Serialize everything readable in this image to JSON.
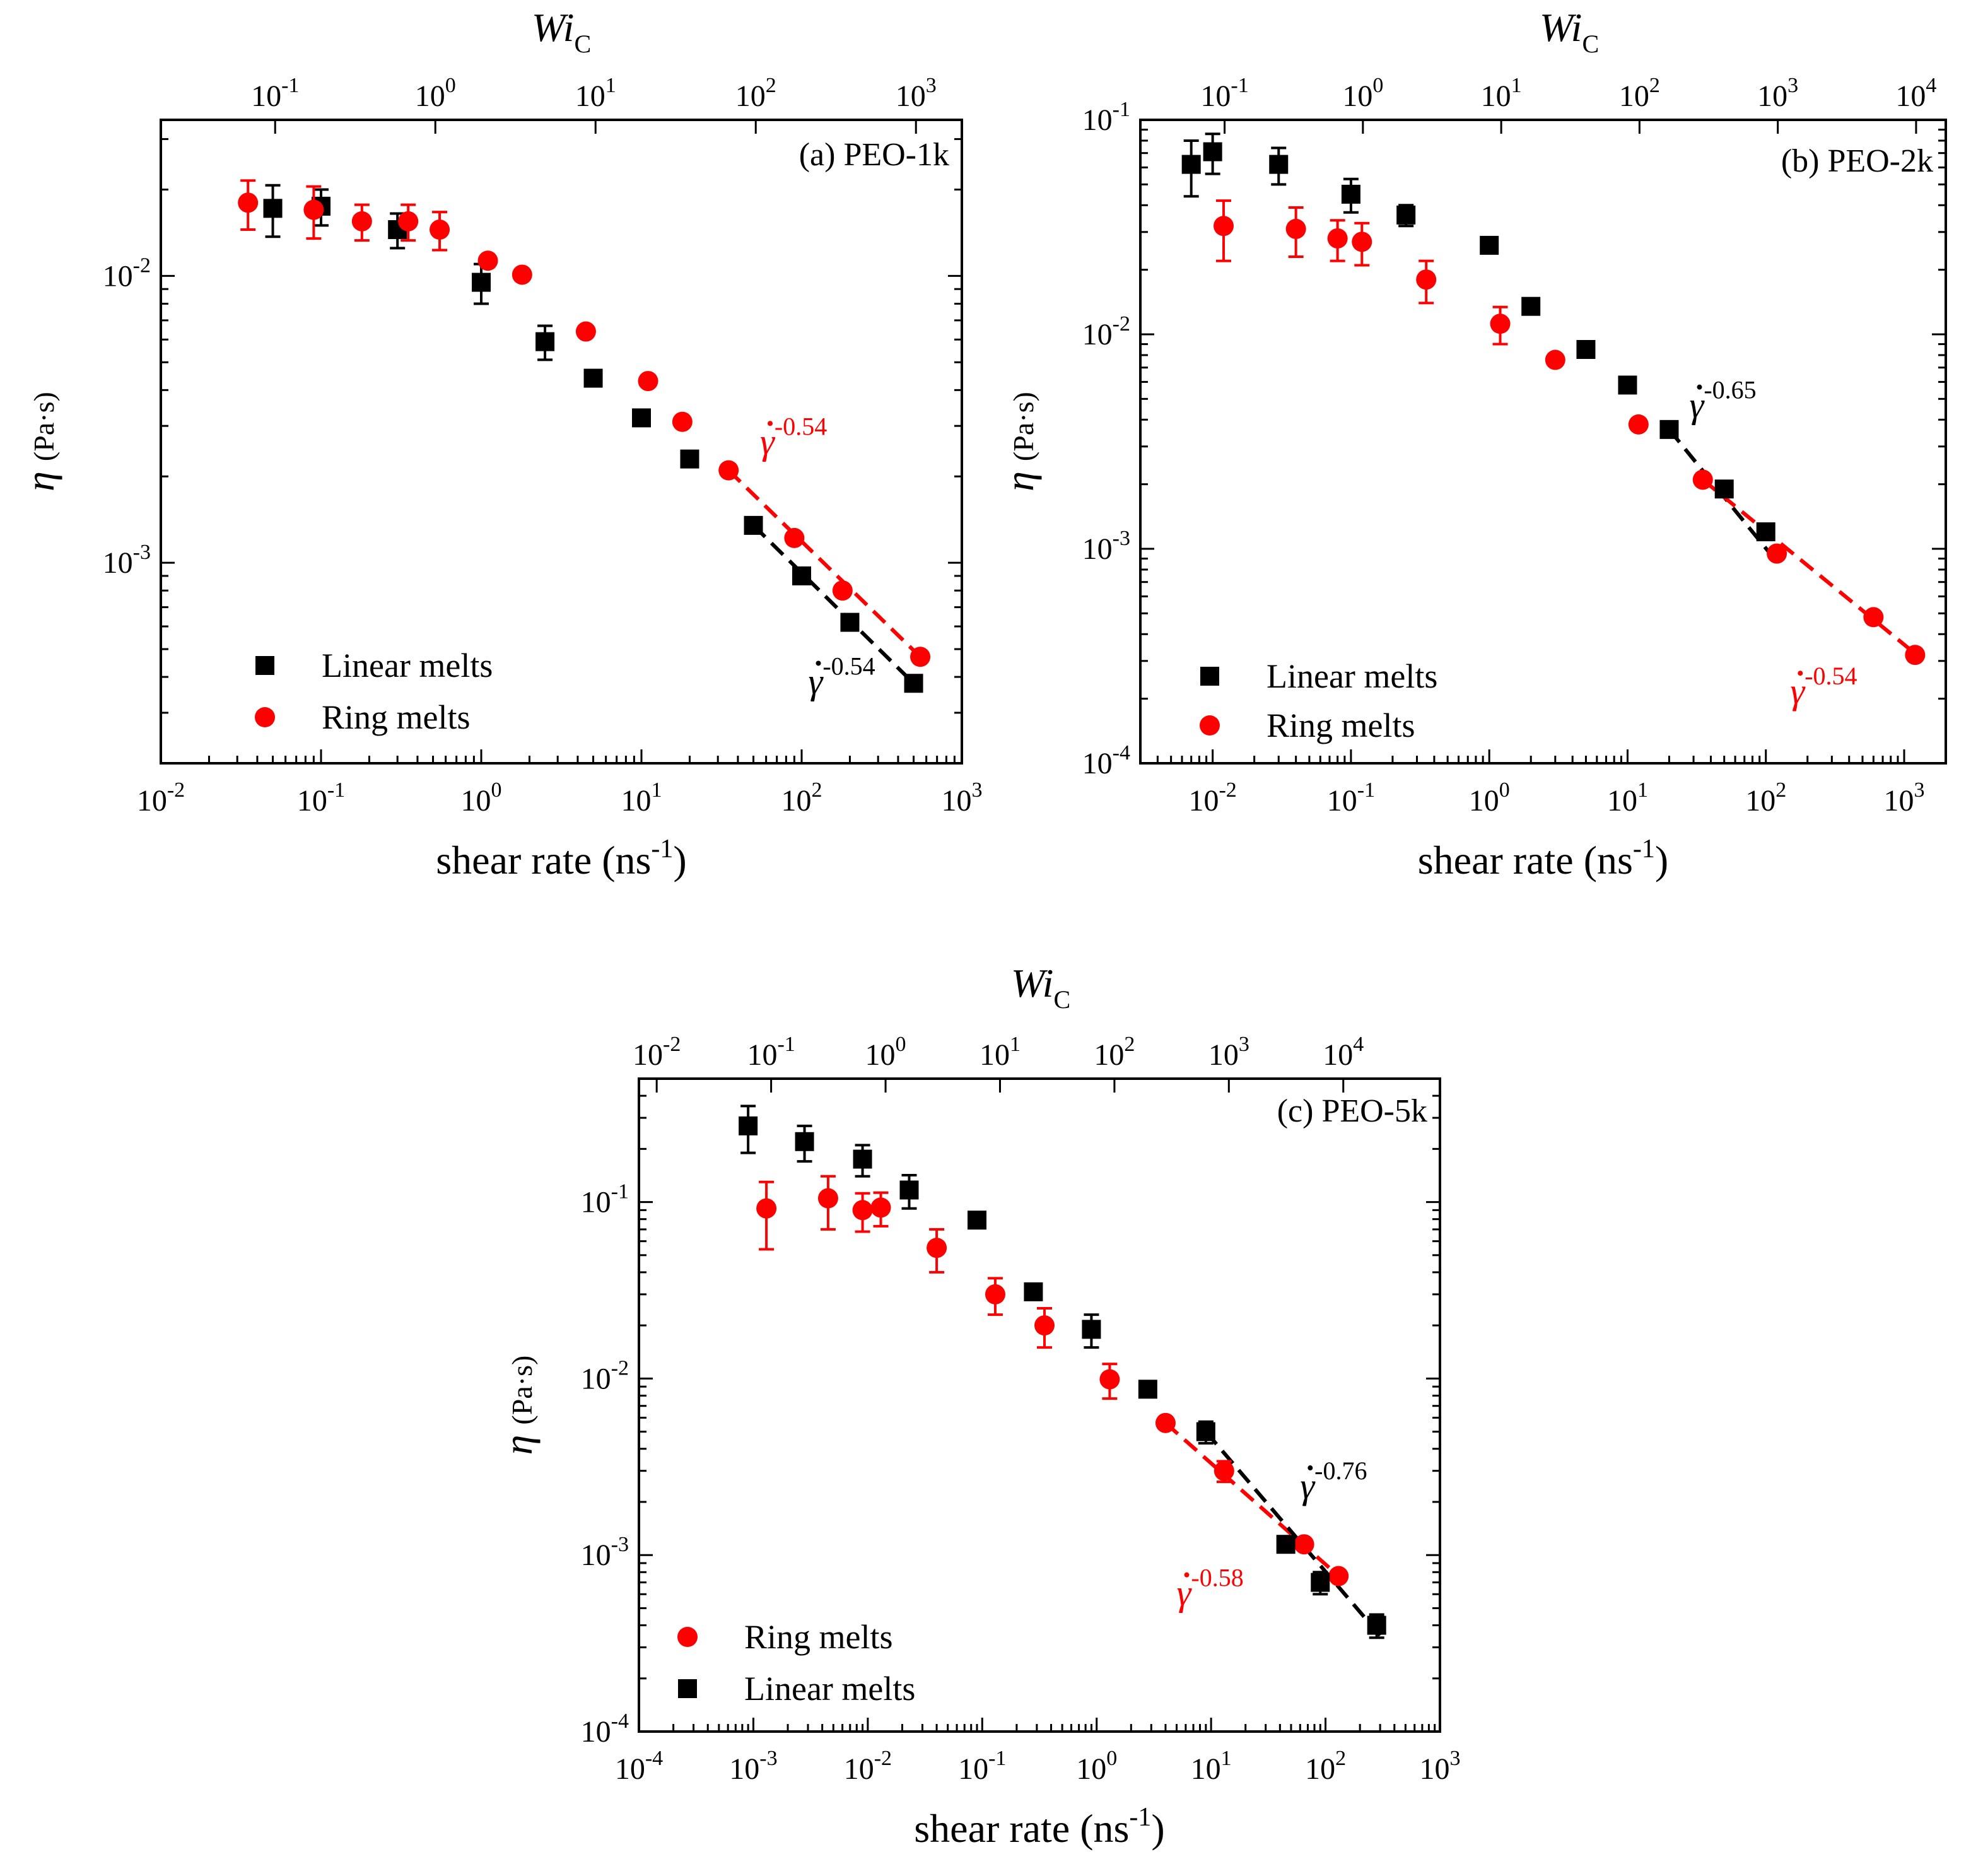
{
  "chart_data": [
    {
      "type": "scatter",
      "panel_label": "(a) PEO-1k",
      "xlabel": "shear rate (ns",
      "xlabel_unit_exp": "-1",
      "xlabel_close": ")",
      "ylabel_symbol": "η",
      "ylabel_unit": "(Pa·s)",
      "top_label": "Wi",
      "top_label_sub": "C",
      "x_scale": "log",
      "y_scale": "log",
      "xlim": [
        0.01,
        1000
      ],
      "ylim": [
        0.0002,
        0.035
      ],
      "x_ticks": [
        {
          "v": 0.01,
          "base": "10",
          "exp": "-2"
        },
        {
          "v": 0.1,
          "base": "10",
          "exp": "-1"
        },
        {
          "v": 1,
          "base": "10",
          "exp": "0"
        },
        {
          "v": 10,
          "base": "10",
          "exp": "1"
        },
        {
          "v": 100,
          "base": "10",
          "exp": "2"
        },
        {
          "v": 1000,
          "base": "10",
          "exp": "3"
        }
      ],
      "y_ticks": [
        {
          "v": 0.01,
          "base": "10",
          "exp": "-2"
        },
        {
          "v": 0.001,
          "base": "10",
          "exp": "-3"
        }
      ],
      "top_ticks": [
        {
          "v": 0.0517,
          "base": "10",
          "exp": "-1"
        },
        {
          "v": 0.517,
          "base": "10",
          "exp": "0"
        },
        {
          "v": 5.17,
          "base": "10",
          "exp": "1"
        },
        {
          "v": 51.7,
          "base": "10",
          "exp": "2"
        },
        {
          "v": 517,
          "base": "10",
          "exp": "3"
        }
      ],
      "series": [
        {
          "name": "Linear melts",
          "marker": "square",
          "color": "#000000",
          "points": [
            {
              "x": 0.05,
              "y": 0.0172,
              "err": 0.0035
            },
            {
              "x": 0.1,
              "y": 0.0175,
              "err": 0.0025
            },
            {
              "x": 0.3,
              "y": 0.0145,
              "err": 0.002
            },
            {
              "x": 1.0,
              "y": 0.0095,
              "err": 0.0015
            },
            {
              "x": 2.5,
              "y": 0.0059,
              "err": 0.0008
            },
            {
              "x": 5.0,
              "y": 0.0044,
              "err": 0
            },
            {
              "x": 10,
              "y": 0.0032,
              "err": 0
            },
            {
              "x": 20,
              "y": 0.0023,
              "err": 0
            },
            {
              "x": 50,
              "y": 0.00135,
              "err": 0
            },
            {
              "x": 100,
              "y": 0.0009,
              "err": 0
            },
            {
              "x": 200,
              "y": 0.00062,
              "err": 0
            },
            {
              "x": 500,
              "y": 0.00038,
              "err": 0
            }
          ]
        },
        {
          "name": "Ring melts",
          "marker": "circle",
          "color": "#ff0000",
          "points": [
            {
              "x": 0.035,
              "y": 0.018,
              "err": 0.0035
            },
            {
              "x": 0.09,
              "y": 0.017,
              "err": 0.0035
            },
            {
              "x": 0.18,
              "y": 0.0155,
              "err": 0.0022
            },
            {
              "x": 0.35,
              "y": 0.0155,
              "err": 0.0022
            },
            {
              "x": 0.55,
              "y": 0.0145,
              "err": 0.0022
            },
            {
              "x": 1.1,
              "y": 0.0113,
              "err": 0
            },
            {
              "x": 1.8,
              "y": 0.0101,
              "err": 0
            },
            {
              "x": 4.5,
              "y": 0.0064,
              "err": 0
            },
            {
              "x": 11,
              "y": 0.0043,
              "err": 0
            },
            {
              "x": 18,
              "y": 0.0031,
              "err": 0
            },
            {
              "x": 35,
              "y": 0.0021,
              "err": 0
            },
            {
              "x": 90,
              "y": 0.00122,
              "err": 0
            },
            {
              "x": 180,
              "y": 0.0008,
              "err": 0
            },
            {
              "x": 550,
              "y": 0.00047,
              "err": 0
            }
          ]
        }
      ],
      "fits": [
        {
          "color": "#000000",
          "x": [
            50,
            500
          ],
          "y": [
            0.00135,
            0.00038
          ]
        },
        {
          "color": "#ff0000",
          "x": [
            35,
            550
          ],
          "y": [
            0.0021,
            0.00047
          ]
        }
      ],
      "fit_labels": [
        {
          "text": "γ",
          "exp": "-0.54",
          "color": "#ff0000",
          "x": 55,
          "y": 0.0024
        },
        {
          "text": "γ",
          "exp": "-0.54",
          "color": "#000000",
          "x": 110,
          "y": 0.00035
        }
      ],
      "legend": [
        {
          "label": "Linear melts",
          "marker": "square",
          "color": "#000000"
        },
        {
          "label": "Ring melts",
          "marker": "circle",
          "color": "#ff0000"
        }
      ]
    },
    {
      "type": "scatter",
      "panel_label": "(b) PEO-2k",
      "xlabel": "shear rate (ns",
      "xlabel_unit_exp": "-1",
      "xlabel_close": ")",
      "ylabel_symbol": "η",
      "ylabel_unit": "(Pa·s)",
      "top_label": "Wi",
      "top_label_sub": "C",
      "x_scale": "log",
      "y_scale": "log",
      "xlim": [
        0.003,
        2000
      ],
      "ylim": [
        0.0001,
        0.1
      ],
      "x_ticks": [
        {
          "v": 0.01,
          "base": "10",
          "exp": "-2"
        },
        {
          "v": 0.1,
          "base": "10",
          "exp": "-1"
        },
        {
          "v": 1,
          "base": "10",
          "exp": "0"
        },
        {
          "v": 10,
          "base": "10",
          "exp": "1"
        },
        {
          "v": 100,
          "base": "10",
          "exp": "2"
        },
        {
          "v": 1000,
          "base": "10",
          "exp": "3"
        }
      ],
      "y_ticks": [
        {
          "v": 0.1,
          "base": "10",
          "exp": "-1"
        },
        {
          "v": 0.01,
          "base": "10",
          "exp": "-2"
        },
        {
          "v": 0.001,
          "base": "10",
          "exp": "-3"
        },
        {
          "v": 0.0001,
          "base": "10",
          "exp": "-4"
        }
      ],
      "top_ticks": [
        {
          "v": 0.0122,
          "base": "10",
          "exp": "-1"
        },
        {
          "v": 0.122,
          "base": "10",
          "exp": "0"
        },
        {
          "v": 1.22,
          "base": "10",
          "exp": "1"
        },
        {
          "v": 12.2,
          "base": "10",
          "exp": "2"
        },
        {
          "v": 122,
          "base": "10",
          "exp": "3"
        },
        {
          "v": 1220,
          "base": "10",
          "exp": "4"
        }
      ],
      "series": [
        {
          "name": "Linear melts",
          "marker": "square",
          "color": "#000000",
          "points": [
            {
              "x": 0.007,
              "y": 0.062,
              "err": 0.018
            },
            {
              "x": 0.01,
              "y": 0.071,
              "err": 0.015
            },
            {
              "x": 0.03,
              "y": 0.062,
              "err": 0.012
            },
            {
              "x": 0.1,
              "y": 0.045,
              "err": 0.008
            },
            {
              "x": 0.25,
              "y": 0.036,
              "err": 0.004
            },
            {
              "x": 1.0,
              "y": 0.026,
              "err": 0
            },
            {
              "x": 2.0,
              "y": 0.0135,
              "err": 0
            },
            {
              "x": 5.0,
              "y": 0.0085,
              "err": 0
            },
            {
              "x": 10,
              "y": 0.0058,
              "err": 0
            },
            {
              "x": 20,
              "y": 0.0036,
              "err": 0
            },
            {
              "x": 50,
              "y": 0.0019,
              "err": 0
            },
            {
              "x": 100,
              "y": 0.0012,
              "err": 0
            }
          ]
        },
        {
          "name": "Ring melts",
          "marker": "circle",
          "color": "#ff0000",
          "points": [
            {
              "x": 0.012,
              "y": 0.032,
              "err": 0.01
            },
            {
              "x": 0.04,
              "y": 0.031,
              "err": 0.008
            },
            {
              "x": 0.08,
              "y": 0.028,
              "err": 0.006
            },
            {
              "x": 0.12,
              "y": 0.027,
              "err": 0.006
            },
            {
              "x": 0.35,
              "y": 0.018,
              "err": 0.004
            },
            {
              "x": 1.2,
              "y": 0.0112,
              "err": 0.0022
            },
            {
              "x": 3.0,
              "y": 0.0076,
              "err": 0
            },
            {
              "x": 12,
              "y": 0.0038,
              "err": 0
            },
            {
              "x": 35,
              "y": 0.0021,
              "err": 0
            },
            {
              "x": 120,
              "y": 0.00095,
              "err": 0
            },
            {
              "x": 600,
              "y": 0.00048,
              "err": 0
            },
            {
              "x": 1200,
              "y": 0.00032,
              "err": 0
            }
          ]
        }
      ],
      "fits": [
        {
          "color": "#000000",
          "x": [
            20,
            120
          ],
          "y": [
            0.0036,
            0.00087
          ]
        },
        {
          "color": "#ff0000",
          "x": [
            35,
            1100
          ],
          "y": [
            0.0021,
            0.00034
          ]
        }
      ],
      "fit_labels": [
        {
          "text": "γ",
          "exp": "-0.65",
          "color": "#000000",
          "x": 28,
          "y": 0.0041
        },
        {
          "text": "γ",
          "exp": "-0.54",
          "color": "#ff0000",
          "x": 150,
          "y": 0.00019
        }
      ],
      "legend": [
        {
          "label": "Linear melts",
          "marker": "square",
          "color": "#000000"
        },
        {
          "label": "Ring melts",
          "marker": "circle",
          "color": "#ff0000"
        }
      ]
    },
    {
      "type": "scatter",
      "panel_label": "(c) PEO-5k",
      "xlabel": "shear rate (ns",
      "xlabel_unit_exp": "-1",
      "xlabel_close": ")",
      "ylabel_symbol": "η",
      "ylabel_unit": "(Pa·s)",
      "top_label": "Wi",
      "top_label_sub": "C",
      "x_scale": "log",
      "y_scale": "log",
      "xlim": [
        0.0001,
        1000
      ],
      "ylim": [
        0.0001,
        0.5
      ],
      "x_ticks": [
        {
          "v": 0.0001,
          "base": "10",
          "exp": "-4"
        },
        {
          "v": 0.001,
          "base": "10",
          "exp": "-3"
        },
        {
          "v": 0.01,
          "base": "10",
          "exp": "-2"
        },
        {
          "v": 0.1,
          "base": "10",
          "exp": "-1"
        },
        {
          "v": 1,
          "base": "10",
          "exp": "0"
        },
        {
          "v": 10,
          "base": "10",
          "exp": "1"
        },
        {
          "v": 100,
          "base": "10",
          "exp": "2"
        },
        {
          "v": 1000,
          "base": "10",
          "exp": "3"
        }
      ],
      "y_ticks": [
        {
          "v": 0.1,
          "base": "10",
          "exp": "-1"
        },
        {
          "v": 0.01,
          "base": "10",
          "exp": "-2"
        },
        {
          "v": 0.001,
          "base": "10",
          "exp": "-3"
        },
        {
          "v": 0.0001,
          "base": "10",
          "exp": "-4"
        }
      ],
      "top_ticks": [
        {
          "v": 0.000143,
          "base": "10",
          "exp": "-2"
        },
        {
          "v": 0.00143,
          "base": "10",
          "exp": "-1"
        },
        {
          "v": 0.0143,
          "base": "10",
          "exp": "0"
        },
        {
          "v": 0.143,
          "base": "10",
          "exp": "1"
        },
        {
          "v": 1.43,
          "base": "10",
          "exp": "2"
        },
        {
          "v": 14.3,
          "base": "10",
          "exp": "3"
        },
        {
          "v": 143,
          "base": "10",
          "exp": "4"
        }
      ],
      "series": [
        {
          "name": "Ring melts",
          "marker": "circle",
          "color": "#ff0000",
          "points": [
            {
              "x": 0.0013,
              "y": 0.092,
              "err": 0.038
            },
            {
              "x": 0.0045,
              "y": 0.105,
              "err": 0.035
            },
            {
              "x": 0.009,
              "y": 0.09,
              "err": 0.022
            },
            {
              "x": 0.013,
              "y": 0.093,
              "err": 0.02
            },
            {
              "x": 0.04,
              "y": 0.055,
              "err": 0.015
            },
            {
              "x": 0.13,
              "y": 0.03,
              "err": 0.007
            },
            {
              "x": 0.35,
              "y": 0.02,
              "err": 0.005
            },
            {
              "x": 1.3,
              "y": 0.0099,
              "err": 0.0022
            },
            {
              "x": 4.0,
              "y": 0.0056,
              "err": 0
            },
            {
              "x": 13,
              "y": 0.003,
              "err": 0.0004
            },
            {
              "x": 65,
              "y": 0.00115,
              "err": 0
            },
            {
              "x": 130,
              "y": 0.00076,
              "err": 0
            }
          ]
        },
        {
          "name": "Linear melts",
          "marker": "square",
          "color": "#000000",
          "points": [
            {
              "x": 0.0009,
              "y": 0.27,
              "err": 0.08
            },
            {
              "x": 0.0028,
              "y": 0.22,
              "err": 0.05
            },
            {
              "x": 0.009,
              "y": 0.175,
              "err": 0.035
            },
            {
              "x": 0.023,
              "y": 0.117,
              "err": 0.025
            },
            {
              "x": 0.09,
              "y": 0.079,
              "err": 0
            },
            {
              "x": 0.28,
              "y": 0.031,
              "err": 0
            },
            {
              "x": 0.9,
              "y": 0.019,
              "err": 0.004
            },
            {
              "x": 2.8,
              "y": 0.0087,
              "err": 0
            },
            {
              "x": 9.0,
              "y": 0.005,
              "err": 0.0007
            },
            {
              "x": 45,
              "y": 0.00115,
              "err": 0
            },
            {
              "x": 90,
              "y": 0.0007,
              "err": 0.0001
            },
            {
              "x": 280,
              "y": 0.0004,
              "err": 6e-05
            }
          ]
        }
      ],
      "fits": [
        {
          "color": "#ff0000",
          "x": [
            4,
            140
          ],
          "y": [
            0.0056,
            0.00073
          ]
        },
        {
          "color": "#000000",
          "x": [
            9,
            300
          ],
          "y": [
            0.005,
            0.00035
          ]
        }
      ],
      "fit_labels": [
        {
          "text": "γ",
          "exp": "-0.76",
          "color": "#000000",
          "x": 60,
          "y": 0.0021
        },
        {
          "text": "γ",
          "exp": "-0.58",
          "color": "#ff0000",
          "x": 5,
          "y": 0.00052
        }
      ],
      "legend": [
        {
          "label": "Ring melts",
          "marker": "circle",
          "color": "#ff0000"
        },
        {
          "label": "Linear melts",
          "marker": "square",
          "color": "#000000"
        }
      ]
    }
  ]
}
